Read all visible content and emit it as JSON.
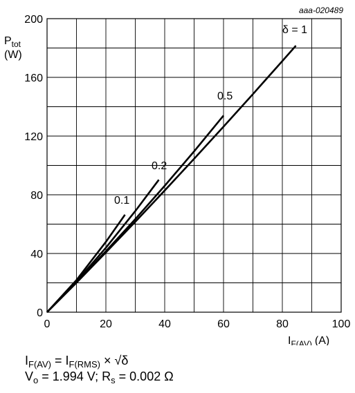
{
  "chart_data": {
    "type": "line",
    "code": "aaa-020489",
    "ylabel": {
      "main": "P",
      "sub": "tot",
      "unit": "(W)"
    },
    "xlabel": {
      "main": "I",
      "sub": "F(AV)",
      "unit": "(A)"
    },
    "xlim": [
      0,
      100
    ],
    "ylim": [
      0,
      200
    ],
    "xticks": [
      0,
      20,
      40,
      60,
      80,
      100
    ],
    "yticks": [
      0,
      40,
      80,
      120,
      160,
      200
    ],
    "grid": true,
    "series": [
      {
        "name": "δ = 1",
        "x": [
          0,
          10,
          20,
          30,
          40,
          50,
          60,
          70,
          80,
          84.6
        ],
        "y": [
          0,
          20.1,
          40.7,
          61.6,
          82.9,
          104.5,
          126.4,
          148.6,
          171.1,
          181.6
        ]
      },
      {
        "name": "0.5",
        "x": [
          0,
          10,
          20,
          30,
          40,
          50,
          60
        ],
        "y": [
          0,
          20.3,
          41.5,
          63.4,
          86.1,
          109.6,
          134.0
        ]
      },
      {
        "name": "0.2",
        "x": [
          0,
          10,
          20,
          30,
          38
        ],
        "y": [
          0,
          20.9,
          43.9,
          68.9,
          90.2
        ]
      },
      {
        "name": "0.1",
        "x": [
          0,
          10,
          20,
          26.5
        ],
        "y": [
          0,
          21.9,
          47.9,
          66.4
        ]
      }
    ]
  },
  "formula": {
    "line1": {
      "a": "I",
      "a_sub": "F(AV)",
      "b": " = I",
      "b_sub": "F(RMS)",
      "c": " × √δ"
    },
    "line2": {
      "a": "V",
      "a_sub": "o",
      "b": " = 1.994 V; R",
      "b_sub": "s",
      "c": " = 0.002 Ω"
    }
  }
}
